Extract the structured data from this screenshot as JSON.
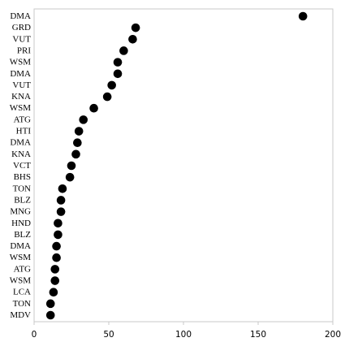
{
  "chart_data": {
    "type": "scatter",
    "title": "",
    "xlabel": "",
    "ylabel": "",
    "xlim": [
      0,
      200
    ],
    "xticks": [
      0,
      50,
      100,
      150,
      200
    ],
    "xtick_labels": [
      "0",
      "50",
      "100",
      "150",
      "200"
    ],
    "grid": false,
    "marker_color": "#000000",
    "frame_color": "#c8c8c8",
    "categories": [
      "DMA",
      "GRD",
      "VUT",
      "PRI",
      "WSM",
      "DMA",
      "VUT",
      "KNA",
      "WSM",
      "ATG",
      "HTI",
      "DMA",
      "KNA",
      "VCT",
      "BHS",
      "TON",
      "BLZ",
      "MNG",
      "HND",
      "BLZ",
      "DMA",
      "WSM",
      "ATG",
      "WSM",
      "LCA",
      "TON",
      "MDV"
    ],
    "values": [
      180,
      68,
      66,
      60,
      56,
      56,
      52,
      49,
      40,
      33,
      30,
      29,
      28,
      25,
      24,
      19,
      18,
      18,
      16,
      16,
      15,
      15,
      14,
      14,
      13,
      11,
      11
    ]
  }
}
